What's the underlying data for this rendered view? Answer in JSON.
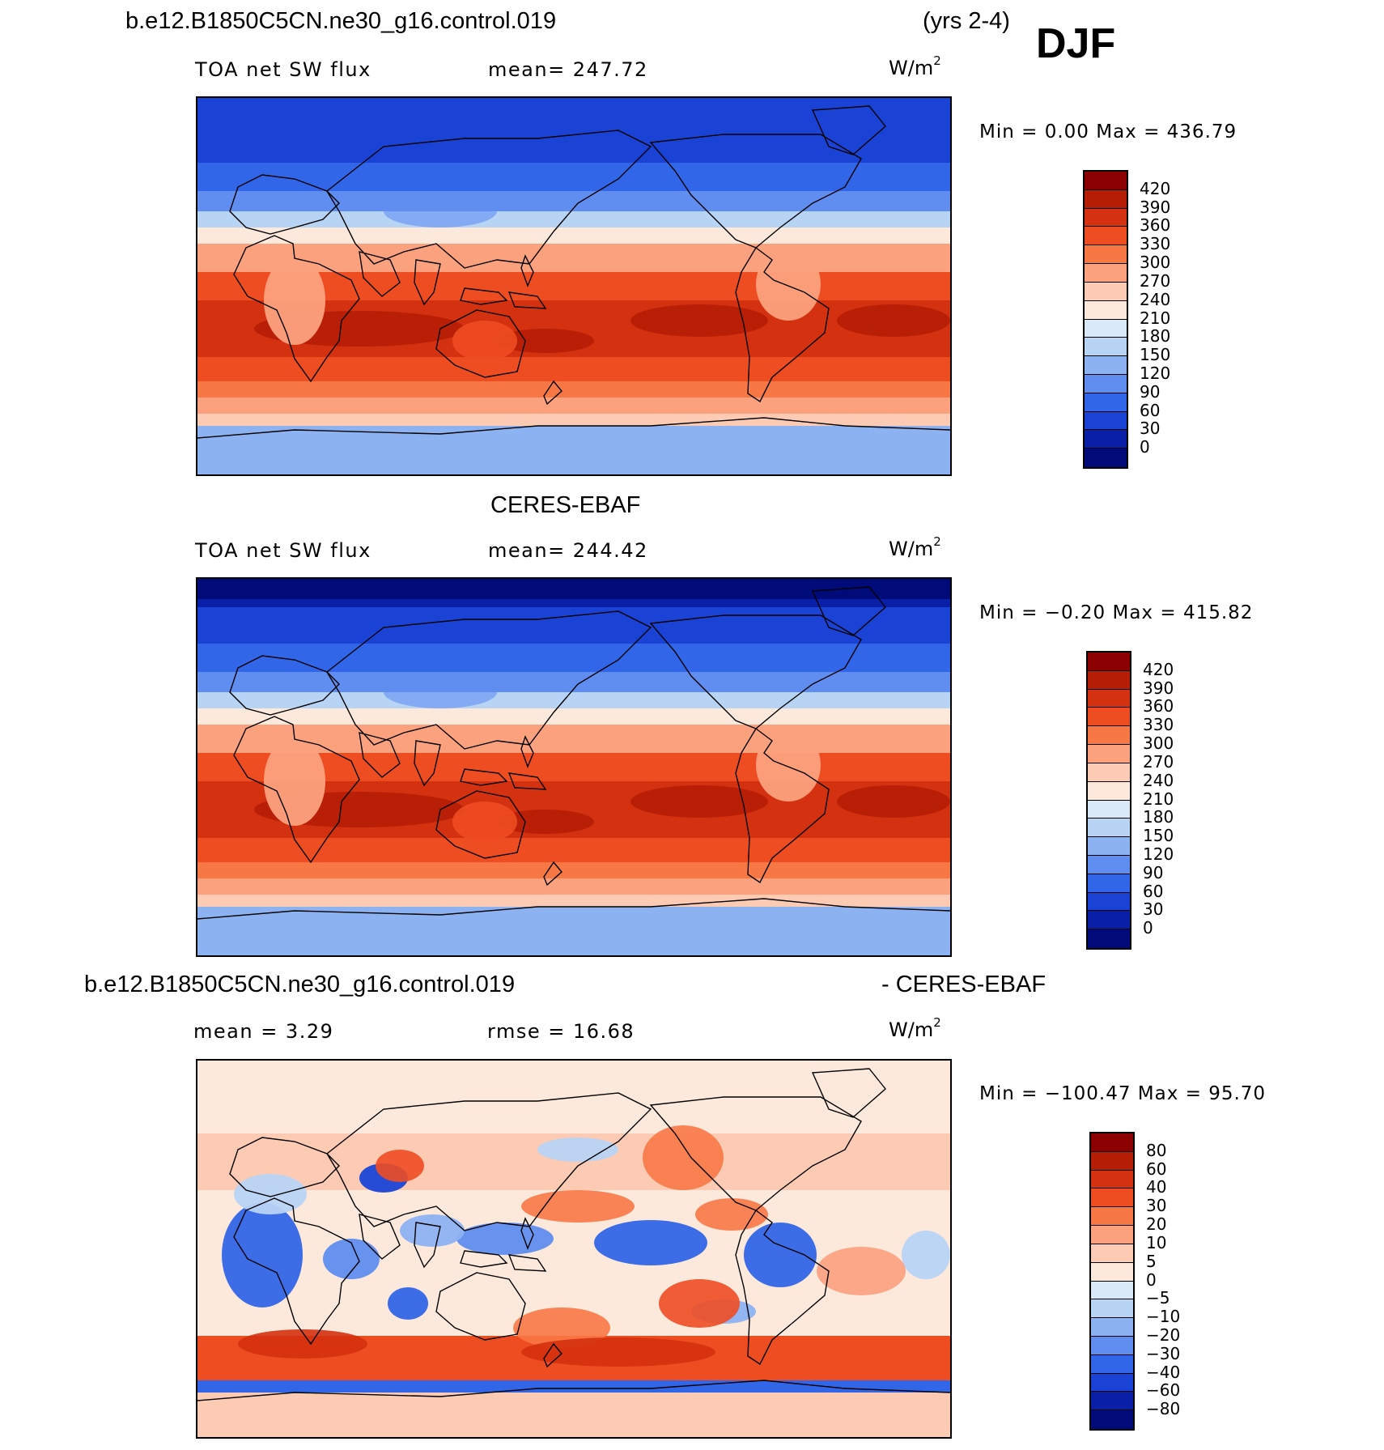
{
  "header": {
    "case_name": "b.e12.B1850C5CN.ne30_g16.control.019",
    "years": "(yrs 2-4)",
    "season": "DJF"
  },
  "panels": [
    {
      "id": "model",
      "title": "",
      "variable": "TOA net SW flux",
      "stat1": "mean= 247.72",
      "stat2": "",
      "units": "W/m",
      "units_exp": "2",
      "minmax": "Min =    0.00 Max = 436.79",
      "colorbar": {
        "levels": [
          "420",
          "390",
          "360",
          "330",
          "300",
          "270",
          "240",
          "210",
          "180",
          "150",
          "120",
          "90",
          "60",
          "30",
          "0"
        ],
        "colors": [
          "#8b0000",
          "#b51e05",
          "#d43110",
          "#ee4d22",
          "#f87845",
          "#fca17e",
          "#fdcbb4",
          "#fde9db",
          "#dae9f8",
          "#b8d4f5",
          "#8db2f2",
          "#5f8ef0",
          "#3266e8",
          "#1a43d6",
          "#0a1fa8",
          "#000b7a"
        ]
      }
    },
    {
      "id": "obs",
      "title": "CERES-EBAF",
      "variable": "TOA net SW flux",
      "stat1": "mean= 244.42",
      "stat2": "",
      "units": "W/m",
      "units_exp": "2",
      "minmax": "Min =  −0.20 Max = 415.82",
      "colorbar": {
        "levels": [
          "420",
          "390",
          "360",
          "330",
          "300",
          "270",
          "240",
          "210",
          "180",
          "150",
          "120",
          "90",
          "60",
          "30",
          "0"
        ],
        "colors": [
          "#8b0000",
          "#b51e05",
          "#d43110",
          "#ee4d22",
          "#f87845",
          "#fca17e",
          "#fdcbb4",
          "#fde9db",
          "#dae9f8",
          "#b8d4f5",
          "#8db2f2",
          "#5f8ef0",
          "#3266e8",
          "#1a43d6",
          "#0a1fa8",
          "#000b7a"
        ]
      }
    },
    {
      "id": "diff",
      "title_left": "b.e12.B1850C5CN.ne30_g16.control.019",
      "title_right": "- CERES-EBAF",
      "variable": "",
      "stat1": "mean =    3.29",
      "stat2": "rmse =   16.68",
      "units": "W/m",
      "units_exp": "2",
      "minmax": "Min = −100.47 Max =   95.70",
      "colorbar": {
        "levels": [
          "80",
          "60",
          "40",
          "30",
          "20",
          "10",
          "5",
          "0",
          "−5",
          "−10",
          "−20",
          "−30",
          "−40",
          "−60",
          "−80"
        ],
        "colors": [
          "#8b0000",
          "#b51e05",
          "#d43110",
          "#ee4d22",
          "#f87845",
          "#fca17e",
          "#fdcbb4",
          "#fde9db",
          "#dae9f8",
          "#b8d4f5",
          "#8db2f2",
          "#5f8ef0",
          "#3266e8",
          "#1a43d6",
          "#0a1fa8",
          "#000b7a"
        ]
      }
    }
  ],
  "palette": {
    "deep_blue": "#0a1fa8",
    "blue": "#3266e8",
    "light_blue": "#8db2f2",
    "pale_blue": "#dae9f8",
    "cream": "#fde9db",
    "peach": "#fca17e",
    "orange": "#ee4d22",
    "red": "#d43110",
    "dark_red": "#b51e05"
  }
}
